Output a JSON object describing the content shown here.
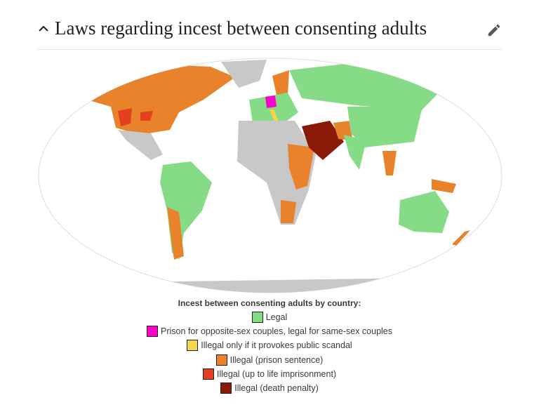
{
  "header": {
    "title": "Laws regarding incest between consenting adults"
  },
  "map": {
    "caption": "Incest between consenting adults by country:",
    "legend": [
      {
        "label": "Legal",
        "color": "#86dc86"
      },
      {
        "label": "Prison for opposite-sex couples, legal for same-sex couples",
        "color": "#ff00cc"
      },
      {
        "label": "Illegal only if it provokes public scandal",
        "color": "#f7d54a"
      },
      {
        "label": "Illegal (prison sentence)",
        "color": "#e8832b"
      },
      {
        "label": "Illegal (up to life imprisonment)",
        "color": "#e2401e"
      },
      {
        "label": "Illegal (death penalty)",
        "color": "#8a1a08"
      }
    ]
  }
}
